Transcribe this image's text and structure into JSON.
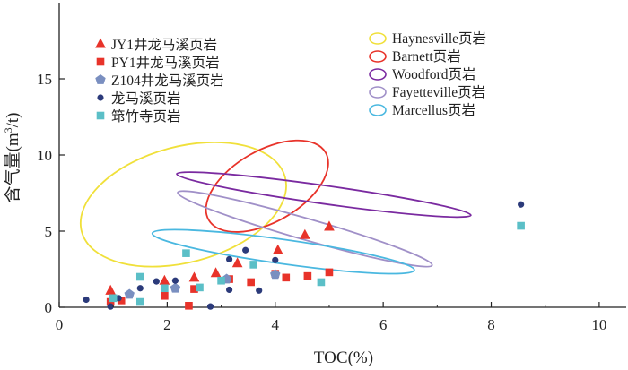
{
  "chart_data": {
    "type": "scatter",
    "xlabel": "TOC(%)",
    "ylabel": "含气量(m³/t)",
    "ylabel_parts": {
      "pre": "含气量(m",
      "sup": "3",
      "post": "/t)"
    },
    "xlim": [
      0,
      10.5
    ],
    "ylim": [
      0,
      20
    ],
    "xticks": [
      0,
      2,
      4,
      6,
      8,
      10
    ],
    "yticks": [
      0,
      5,
      10,
      15
    ],
    "xtick_labels": [
      "0",
      "2",
      "4",
      "6",
      "8",
      "10"
    ],
    "ytick_labels": [
      "0",
      "5",
      "10",
      "15"
    ],
    "series": [
      {
        "name": "JY1井龙马溪页岩",
        "marker": "triangle",
        "color": "#e8332a",
        "points": [
          [
            0.95,
            1.1
          ],
          [
            1.95,
            1.75
          ],
          [
            2.5,
            1.95
          ],
          [
            2.9,
            2.25
          ],
          [
            3.3,
            2.9
          ],
          [
            4.05,
            3.75
          ],
          [
            4.55,
            4.75
          ],
          [
            5.0,
            5.3
          ]
        ]
      },
      {
        "name": "PY1井龙马溪页岩",
        "marker": "square",
        "color": "#e8332a",
        "points": [
          [
            0.95,
            0.35
          ],
          [
            1.15,
            0.45
          ],
          [
            1.95,
            0.75
          ],
          [
            2.5,
            1.2
          ],
          [
            3.15,
            1.85
          ],
          [
            3.55,
            1.65
          ],
          [
            4.0,
            2.2
          ],
          [
            4.2,
            1.95
          ],
          [
            4.6,
            2.05
          ],
          [
            5.0,
            2.3
          ],
          [
            2.4,
            0.1
          ]
        ]
      },
      {
        "name": "Z104井龙马溪页岩",
        "marker": "pentagon",
        "color": "#7a8fc0",
        "points": [
          [
            1.3,
            0.85
          ],
          [
            2.15,
            1.25
          ],
          [
            3.1,
            1.85
          ],
          [
            4.0,
            2.15
          ]
        ]
      },
      {
        "name": "龙马溪页岩",
        "marker": "circle",
        "color": "#2b3a7a",
        "points": [
          [
            0.5,
            0.5
          ],
          [
            0.95,
            0.05
          ],
          [
            1.1,
            0.6
          ],
          [
            1.5,
            1.25
          ],
          [
            1.8,
            1.7
          ],
          [
            2.15,
            1.75
          ],
          [
            2.8,
            0.05
          ],
          [
            3.15,
            1.15
          ],
          [
            3.15,
            3.15
          ],
          [
            3.45,
            3.75
          ],
          [
            3.7,
            1.1
          ],
          [
            4.0,
            3.1
          ],
          [
            8.55,
            6.75
          ]
        ]
      },
      {
        "name": "筇竹寺页岩",
        "marker": "square",
        "color": "#5bbfc7",
        "points": [
          [
            1.0,
            0.6
          ],
          [
            1.5,
            2.0
          ],
          [
            1.5,
            0.35
          ],
          [
            1.95,
            1.25
          ],
          [
            2.35,
            3.55
          ],
          [
            2.6,
            1.3
          ],
          [
            3.0,
            1.75
          ],
          [
            3.6,
            2.8
          ],
          [
            4.85,
            1.65
          ],
          [
            8.55,
            5.35
          ]
        ]
      }
    ],
    "ellipses": [
      {
        "name": "Haynesville页岩",
        "color": "#f0e03a",
        "cx": 2.3,
        "cy": 6.75,
        "rx": 1.95,
        "ry": 3.8,
        "rot": 15
      },
      {
        "name": "Barnett页岩",
        "color": "#e8332a",
        "cx": 3.85,
        "cy": 7.95,
        "rx": 1.25,
        "ry": 2.35,
        "rot": 30
      },
      {
        "name": "Woodford页岩",
        "color": "#7a2aa0",
        "cx": 4.9,
        "cy": 7.4,
        "rx": 2.75,
        "ry": 0.6,
        "rot": -8
      },
      {
        "name": "Fayetteville页岩",
        "color": "#a090c8",
        "cx": 4.55,
        "cy": 5.15,
        "rx": 2.45,
        "ry": 0.7,
        "rot": -16
      },
      {
        "name": "Marcellus页岩",
        "color": "#4ab8e0",
        "cx": 4.15,
        "cy": 3.65,
        "rx": 2.45,
        "ry": 0.8,
        "rot": -8
      }
    ],
    "legend_left": [
      "JY1井龙马溪页岩",
      "PY1井龙马溪页岩",
      "Z104井龙马溪页岩",
      "龙马溪页岩",
      "筇竹寺页岩"
    ],
    "legend_right": [
      "Haynesville页岩",
      "Barnett页岩",
      "Woodford页岩",
      "Fayetteville页岩",
      "Marcellus页岩"
    ],
    "legend_placement": "top",
    "grid": false
  }
}
